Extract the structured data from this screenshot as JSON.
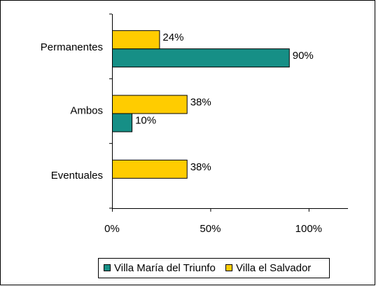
{
  "chart_data": {
    "type": "bar",
    "orientation": "horizontal",
    "categories": [
      "Permanentes",
      "Ambos",
      "Eventuales"
    ],
    "series": [
      {
        "name": "Villa María del Triunfo",
        "color": "#168f86",
        "values": [
          90,
          10,
          null
        ],
        "value_labels": [
          "90%",
          "10%",
          null
        ]
      },
      {
        "name": "Villa el Salvador",
        "color": "#ffcc00",
        "values": [
          24,
          38,
          38
        ],
        "value_labels": [
          "24%",
          "38%",
          "38%"
        ]
      }
    ],
    "xlim": [
      0,
      120
    ],
    "xticks": [
      {
        "value": 0,
        "label": "0%"
      },
      {
        "value": 50,
        "label": "50%"
      },
      {
        "value": 100,
        "label": "100%"
      }
    ],
    "legend": "bottom"
  }
}
